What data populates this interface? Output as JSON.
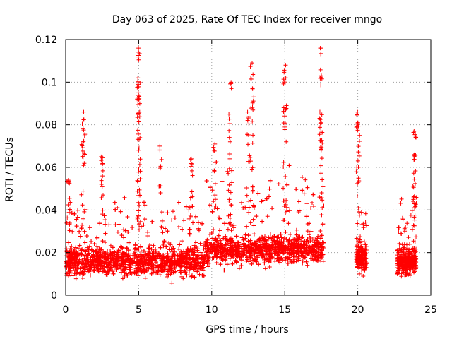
{
  "chart_data": {
    "type": "scatter",
    "title": "Day 063 of 2025, Rate Of TEC Index for receiver mngo",
    "xlabel": "GPS time / hours",
    "ylabel": "ROTI / TECUs",
    "xlim": [
      0,
      25
    ],
    "ylim": [
      0,
      0.12
    ],
    "x_ticks": [
      "0",
      "5",
      "10",
      "15",
      "20",
      "25"
    ],
    "y_ticks": [
      "0",
      "0.02",
      "0.04",
      "0.06",
      "0.08",
      "0.1",
      "0.12"
    ],
    "grid": true,
    "marker": "+",
    "color": "#ff0000",
    "series": [
      {
        "name": "ROTI",
        "segments": [
          {
            "x_range": [
              0.0,
              17.7
            ],
            "median": 0.016,
            "spread": 0.008
          },
          {
            "x_range": [
              19.9,
              20.6
            ],
            "median": 0.018,
            "spread": 0.008
          },
          {
            "x_range": [
              22.7,
              24.0
            ],
            "median": 0.016,
            "spread": 0.007
          }
        ],
        "peaks": [
          {
            "x": 0.2,
            "y": 0.054
          },
          {
            "x": 1.2,
            "y": 0.086
          },
          {
            "x": 1.2,
            "y": 0.072
          },
          {
            "x": 2.5,
            "y": 0.065
          },
          {
            "x": 5.0,
            "y": 0.116
          },
          {
            "x": 5.0,
            "y": 0.102
          },
          {
            "x": 5.0,
            "y": 0.095
          },
          {
            "x": 5.0,
            "y": 0.086
          },
          {
            "x": 6.5,
            "y": 0.07
          },
          {
            "x": 8.6,
            "y": 0.064
          },
          {
            "x": 10.2,
            "y": 0.071
          },
          {
            "x": 11.3,
            "y": 0.1
          },
          {
            "x": 11.2,
            "y": 0.085
          },
          {
            "x": 12.7,
            "y": 0.109
          },
          {
            "x": 12.8,
            "y": 0.097
          },
          {
            "x": 12.5,
            "y": 0.086
          },
          {
            "x": 15.0,
            "y": 0.108
          },
          {
            "x": 15.0,
            "y": 0.088
          },
          {
            "x": 17.5,
            "y": 0.116
          },
          {
            "x": 17.5,
            "y": 0.103
          },
          {
            "x": 17.5,
            "y": 0.077
          },
          {
            "x": 20.0,
            "y": 0.086
          },
          {
            "x": 20.0,
            "y": 0.081
          },
          {
            "x": 23.9,
            "y": 0.077
          },
          {
            "x": 23.9,
            "y": 0.066
          }
        ]
      }
    ]
  }
}
